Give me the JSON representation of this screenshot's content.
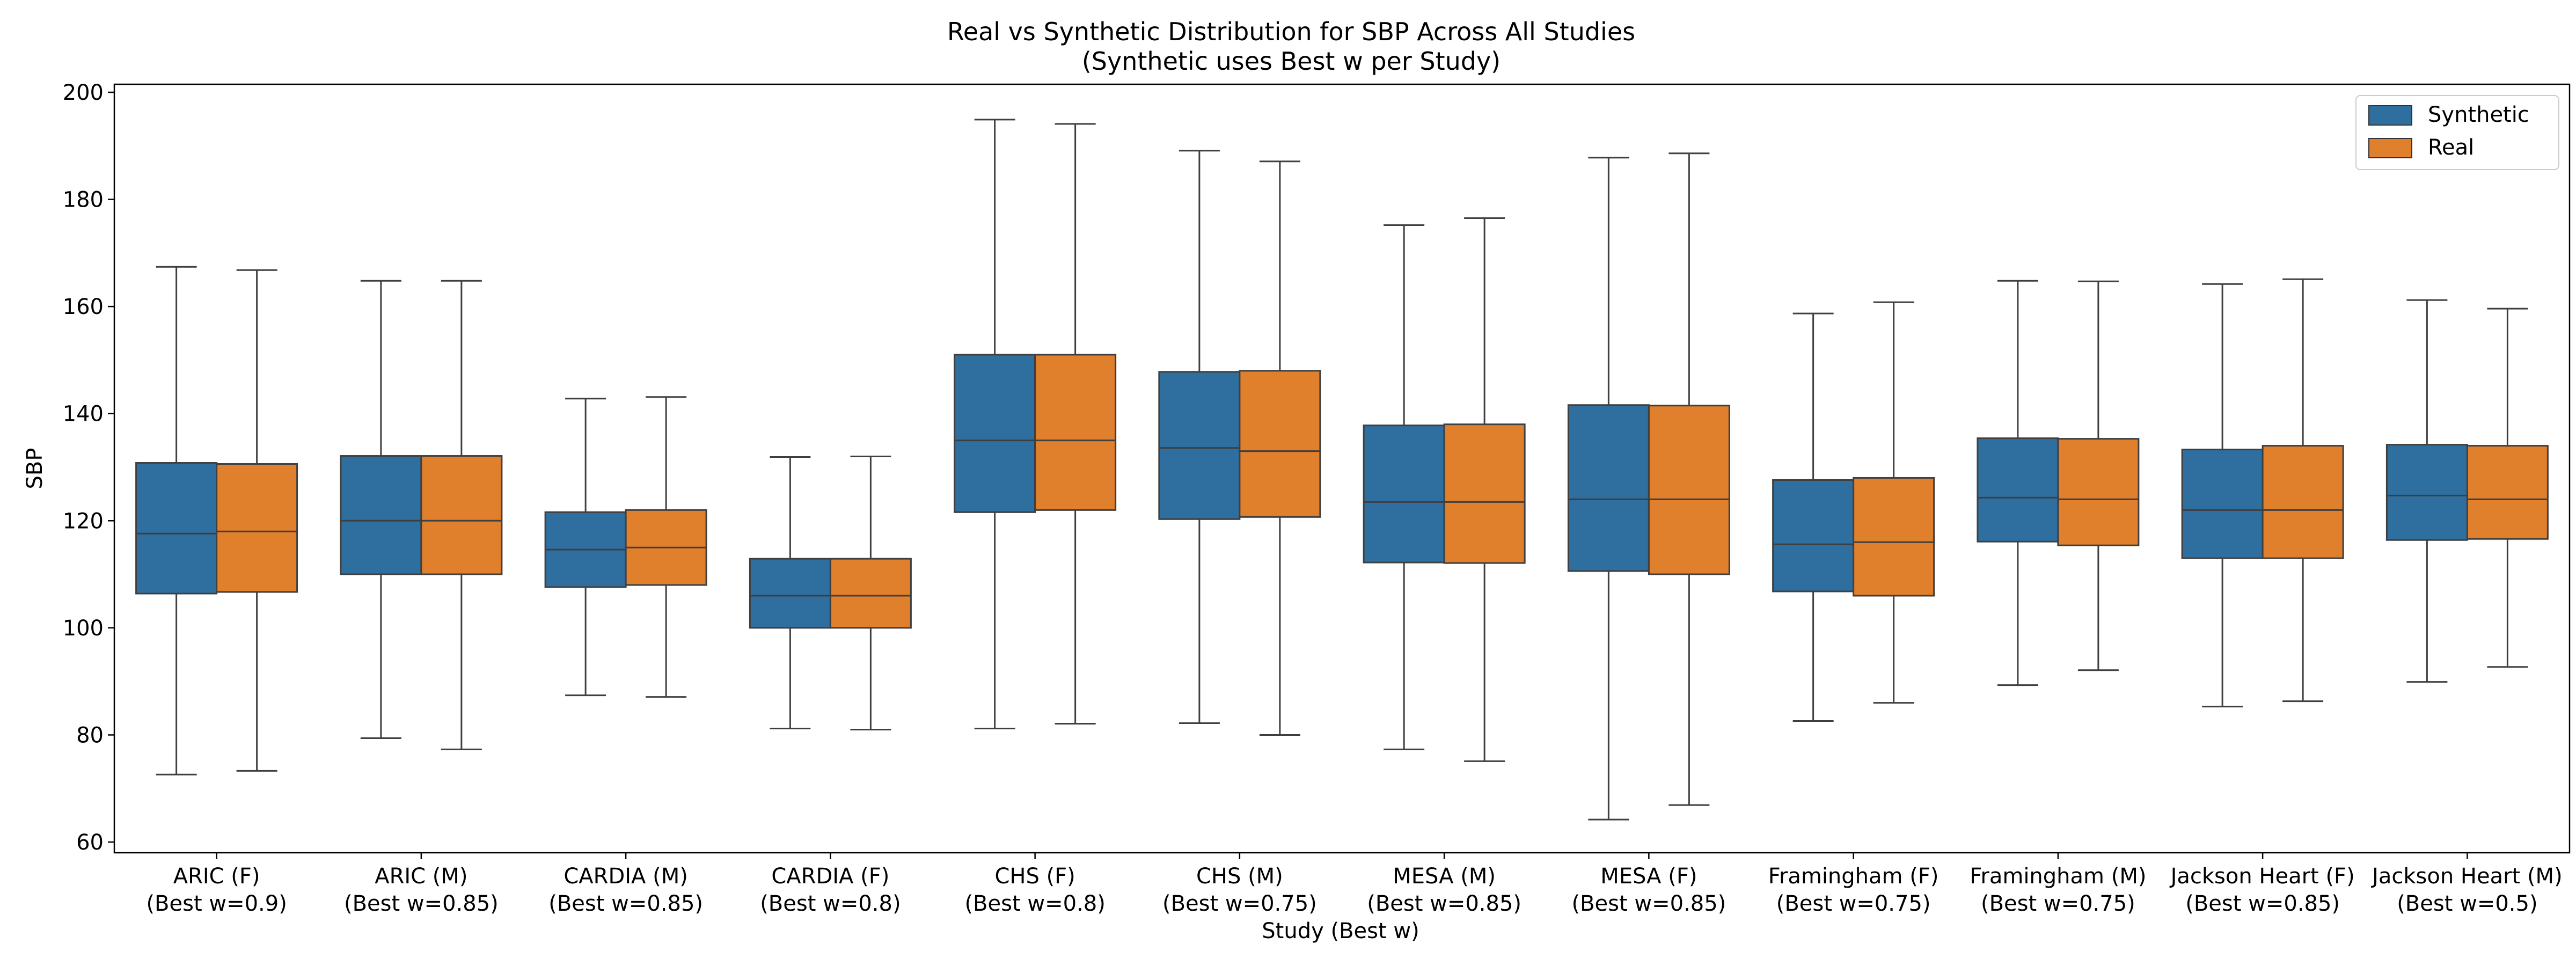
{
  "chart_data": {
    "type": "boxplot",
    "title": "Real vs Synthetic Distribution for SBP Across All Studies",
    "subtitle": "(Synthetic uses Best w per Study)",
    "xlabel": "Study (Best w)",
    "ylabel": "SBP",
    "ylim": [
      58,
      201.5
    ],
    "yticks": [
      60,
      80,
      100,
      120,
      140,
      160,
      180,
      200
    ],
    "legend_position": "top-right",
    "series": [
      {
        "name": "Synthetic",
        "color": "#2f6f9f"
      },
      {
        "name": "Real",
        "color": "#e07f2c"
      }
    ],
    "categories": [
      {
        "line1": "ARIC (F)",
        "line2": "(Best w=0.9)",
        "synthetic": {
          "min": 72.6,
          "q1": 106.4,
          "median": 117.6,
          "q3": 130.8,
          "max": 167.4
        },
        "real": {
          "min": 73.3,
          "q1": 106.7,
          "median": 118.0,
          "q3": 130.6,
          "max": 166.8
        }
      },
      {
        "line1": "ARIC (M)",
        "line2": "(Best w=0.85)",
        "synthetic": {
          "min": 79.4,
          "q1": 110.0,
          "median": 120.0,
          "q3": 132.1,
          "max": 164.8
        },
        "real": {
          "min": 77.3,
          "q1": 110.0,
          "median": 120.0,
          "q3": 132.1,
          "max": 164.8
        }
      },
      {
        "line1": "CARDIA (M)",
        "line2": "(Best w=0.85)",
        "synthetic": {
          "min": 87.4,
          "q1": 107.6,
          "median": 114.6,
          "q3": 121.6,
          "max": 142.8
        },
        "real": {
          "min": 87.1,
          "q1": 108.0,
          "median": 115.0,
          "q3": 122.0,
          "max": 143.1
        }
      },
      {
        "line1": "CARDIA (F)",
        "line2": "(Best w=0.8)",
        "synthetic": {
          "min": 81.2,
          "q1": 100.0,
          "median": 106.0,
          "q3": 112.9,
          "max": 131.9
        },
        "real": {
          "min": 81.0,
          "q1": 100.0,
          "median": 106.0,
          "q3": 112.9,
          "max": 132.0
        }
      },
      {
        "line1": "CHS (F)",
        "line2": "(Best w=0.8)",
        "synthetic": {
          "min": 81.2,
          "q1": 121.6,
          "median": 135.0,
          "q3": 151.0,
          "max": 194.9
        },
        "real": {
          "min": 82.1,
          "q1": 122.0,
          "median": 135.0,
          "q3": 151.0,
          "max": 194.1
        }
      },
      {
        "line1": "CHS (M)",
        "line2": "(Best w=0.75)",
        "synthetic": {
          "min": 82.2,
          "q1": 120.3,
          "median": 133.6,
          "q3": 147.8,
          "max": 189.1
        },
        "real": {
          "min": 80.0,
          "q1": 120.7,
          "median": 133.0,
          "q3": 148.0,
          "max": 187.1
        }
      },
      {
        "line1": "MESA (M)",
        "line2": "(Best w=0.85)",
        "synthetic": {
          "min": 77.3,
          "q1": 112.2,
          "median": 123.5,
          "q3": 137.8,
          "max": 175.2
        },
        "real": {
          "min": 75.1,
          "q1": 112.1,
          "median": 123.5,
          "q3": 138.0,
          "max": 176.5
        }
      },
      {
        "line1": "MESA (F)",
        "line2": "(Best w=0.85)",
        "synthetic": {
          "min": 64.2,
          "q1": 110.6,
          "median": 124.0,
          "q3": 141.6,
          "max": 187.8
        },
        "real": {
          "min": 66.9,
          "q1": 110.0,
          "median": 124.0,
          "q3": 141.5,
          "max": 188.6
        }
      },
      {
        "line1": "Framingham (F)",
        "line2": "(Best w=0.75)",
        "synthetic": {
          "min": 82.6,
          "q1": 106.8,
          "median": 115.6,
          "q3": 127.6,
          "max": 158.7
        },
        "real": {
          "min": 86.0,
          "q1": 106.0,
          "median": 116.0,
          "q3": 128.0,
          "max": 160.8
        }
      },
      {
        "line1": "Framingham (M)",
        "line2": "(Best w=0.75)",
        "synthetic": {
          "min": 89.3,
          "q1": 116.1,
          "median": 124.3,
          "q3": 135.4,
          "max": 164.8
        },
        "real": {
          "min": 92.1,
          "q1": 115.4,
          "median": 124.0,
          "q3": 135.3,
          "max": 164.7
        }
      },
      {
        "line1": "Jackson Heart (F)",
        "line2": "(Best w=0.85)",
        "synthetic": {
          "min": 85.3,
          "q1": 113.0,
          "median": 122.0,
          "q3": 133.3,
          "max": 164.2
        },
        "real": {
          "min": 86.3,
          "q1": 113.0,
          "median": 122.0,
          "q3": 134.0,
          "max": 165.1
        }
      },
      {
        "line1": "Jackson Heart (M)",
        "line2": "(Best w=0.5)",
        "synthetic": {
          "min": 89.9,
          "q1": 116.4,
          "median": 124.7,
          "q3": 134.2,
          "max": 161.2
        },
        "real": {
          "min": 92.7,
          "q1": 116.6,
          "median": 124.0,
          "q3": 134.0,
          "max": 159.6
        }
      }
    ]
  }
}
